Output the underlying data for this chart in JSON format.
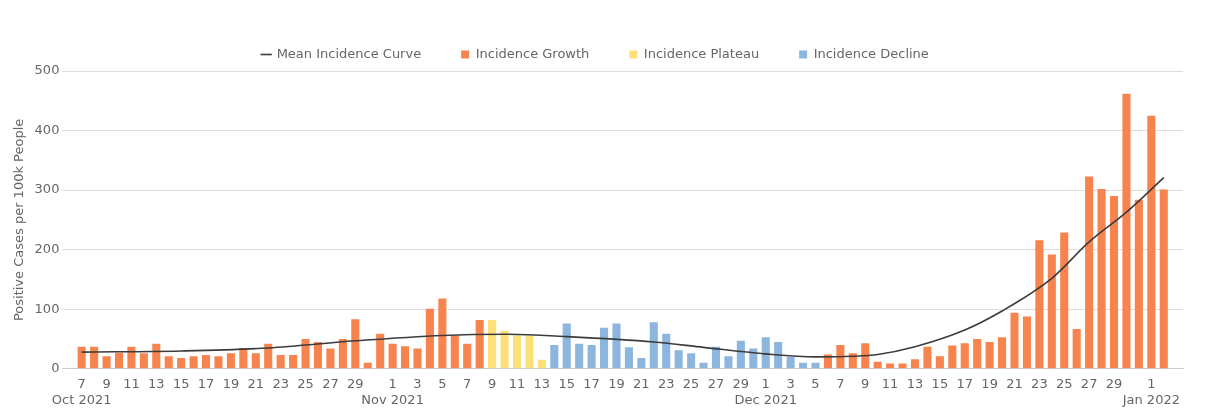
{
  "chart_data": {
    "type": "bar",
    "ylabel": "Positive Cases per 100k People",
    "legend": "top",
    "grid": "y",
    "x": [
      "2021-10-07",
      "2021-10-08",
      "2021-10-09",
      "2021-10-10",
      "2021-10-11",
      "2021-10-12",
      "2021-10-13",
      "2021-10-14",
      "2021-10-15",
      "2021-10-16",
      "2021-10-17",
      "2021-10-18",
      "2021-10-19",
      "2021-10-20",
      "2021-10-21",
      "2021-10-22",
      "2021-10-23",
      "2021-10-24",
      "2021-10-25",
      "2021-10-26",
      "2021-10-27",
      "2021-10-28",
      "2021-10-29",
      "2021-10-30",
      "2021-10-31",
      "2021-11-01",
      "2021-11-02",
      "2021-11-03",
      "2021-11-04",
      "2021-11-05",
      "2021-11-06",
      "2021-11-07",
      "2021-11-08",
      "2021-11-09",
      "2021-11-10",
      "2021-11-11",
      "2021-11-12",
      "2021-11-13",
      "2021-11-14",
      "2021-11-15",
      "2021-11-16",
      "2021-11-17",
      "2021-11-18",
      "2021-11-19",
      "2021-11-20",
      "2021-11-21",
      "2021-11-22",
      "2021-11-23",
      "2021-11-24",
      "2021-11-25",
      "2021-11-26",
      "2021-11-27",
      "2021-11-28",
      "2021-11-29",
      "2021-11-30",
      "2021-12-01",
      "2021-12-02",
      "2021-12-03",
      "2021-12-04",
      "2021-12-05",
      "2021-12-06",
      "2021-12-07",
      "2021-12-08",
      "2021-12-09",
      "2021-12-10",
      "2021-12-11",
      "2021-12-12",
      "2021-12-13",
      "2021-12-14",
      "2021-12-15",
      "2021-12-16",
      "2021-12-17",
      "2021-12-18",
      "2021-12-19",
      "2021-12-20",
      "2021-12-21",
      "2021-12-22",
      "2021-12-23",
      "2021-12-24",
      "2021-12-25",
      "2021-12-26",
      "2021-12-27",
      "2021-12-28",
      "2021-12-29",
      "2021-12-30",
      "2021-12-31",
      "2022-01-01",
      "2022-01-02"
    ],
    "xlim": [
      "2021-10-06T12:00",
      "2022-01-02T12:00"
    ],
    "xticks": [
      {
        "value": "2021-10-07",
        "label": "7\nOct 2021"
      },
      {
        "value": "2021-10-09",
        "label": "9"
      },
      {
        "value": "2021-10-11",
        "label": "11"
      },
      {
        "value": "2021-10-13",
        "label": "13"
      },
      {
        "value": "2021-10-15",
        "label": "15"
      },
      {
        "value": "2021-10-17",
        "label": "17"
      },
      {
        "value": "2021-10-19",
        "label": "19"
      },
      {
        "value": "2021-10-21",
        "label": "21"
      },
      {
        "value": "2021-10-23",
        "label": "23"
      },
      {
        "value": "2021-10-25",
        "label": "25"
      },
      {
        "value": "2021-10-27",
        "label": "27"
      },
      {
        "value": "2021-10-29",
        "label": "29"
      },
      {
        "value": "2021-11-01",
        "label": "1\nNov 2021"
      },
      {
        "value": "2021-11-03",
        "label": "3"
      },
      {
        "value": "2021-11-05",
        "label": "5"
      },
      {
        "value": "2021-11-07",
        "label": "7"
      },
      {
        "value": "2021-11-09",
        "label": "9"
      },
      {
        "value": "2021-11-11",
        "label": "11"
      },
      {
        "value": "2021-11-13",
        "label": "13"
      },
      {
        "value": "2021-11-15",
        "label": "15"
      },
      {
        "value": "2021-11-17",
        "label": "17"
      },
      {
        "value": "2021-11-19",
        "label": "19"
      },
      {
        "value": "2021-11-21",
        "label": "21"
      },
      {
        "value": "2021-11-23",
        "label": "23"
      },
      {
        "value": "2021-11-25",
        "label": "25"
      },
      {
        "value": "2021-11-27",
        "label": "27"
      },
      {
        "value": "2021-11-29",
        "label": "29"
      },
      {
        "value": "2021-12-01",
        "label": "1\nDec 2021"
      },
      {
        "value": "2021-12-03",
        "label": "3"
      },
      {
        "value": "2021-12-05",
        "label": "5"
      },
      {
        "value": "2021-12-07",
        "label": "7"
      },
      {
        "value": "2021-12-09",
        "label": "9"
      },
      {
        "value": "2021-12-11",
        "label": "11"
      },
      {
        "value": "2021-12-13",
        "label": "13"
      },
      {
        "value": "2021-12-15",
        "label": "15"
      },
      {
        "value": "2021-12-17",
        "label": "17"
      },
      {
        "value": "2021-12-19",
        "label": "19"
      },
      {
        "value": "2021-12-21",
        "label": "21"
      },
      {
        "value": "2021-12-23",
        "label": "23"
      },
      {
        "value": "2021-12-25",
        "label": "25"
      },
      {
        "value": "2021-12-27",
        "label": "27"
      },
      {
        "value": "2021-12-29",
        "label": "29"
      },
      {
        "value": "2022-01-01",
        "label": "1\nJan 2022"
      }
    ],
    "ylim": [
      0,
      500
    ],
    "yticks": [
      0,
      100,
      200,
      300,
      400,
      500
    ],
    "series": [
      {
        "name": "Mean Incidence Curve",
        "type": "line",
        "color": "#3c3c3c",
        "marker": "none",
        "line_style": "solid",
        "x": [
          "2021-10-07",
          "2021-10-15",
          "2021-10-22",
          "2021-10-29",
          "2021-11-05",
          "2021-11-10",
          "2021-11-15",
          "2021-11-22",
          "2021-11-26",
          "2021-12-01",
          "2021-12-05",
          "2021-12-08",
          "2021-12-10",
          "2021-12-13",
          "2021-12-17",
          "2021-12-20",
          "2021-12-24",
          "2021-12-27",
          "2021-12-30",
          "2022-01-02"
        ],
        "values": [
          28,
          30,
          35,
          47,
          56,
          58,
          54,
          45,
          36,
          25,
          20,
          21,
          24,
          37,
          65,
          97,
          152,
          213,
          263,
          321
        ]
      },
      {
        "name": "Incidence Growth",
        "color": "#f7844f",
        "values": [
          37,
          37,
          21,
          27,
          37,
          26,
          42,
          21,
          18,
          21,
          23,
          21,
          26,
          35,
          26,
          42,
          23,
          23,
          50,
          45,
          34,
          50,
          83,
          10,
          59,
          42,
          38,
          34,
          101,
          118,
          56,
          42,
          82,
          null,
          null,
          null,
          null,
          null,
          null,
          null,
          null,
          null,
          null,
          null,
          null,
          null,
          null,
          null,
          null,
          null,
          null,
          null,
          null,
          null,
          null,
          null,
          null,
          null,
          null,
          null,
          24,
          40,
          26,
          43,
          12,
          9,
          9,
          16,
          37,
          21,
          39,
          43,
          50,
          45,
          53,
          94,
          88,
          216,
          192,
          229,
          67,
          323,
          302,
          290,
          462,
          284,
          425,
          301
        ]
      },
      {
        "name": "Incidence Plateau",
        "color": "#fde07a",
        "values": [
          null,
          null,
          null,
          null,
          null,
          null,
          null,
          null,
          null,
          null,
          null,
          null,
          null,
          null,
          null,
          null,
          null,
          null,
          null,
          null,
          null,
          null,
          null,
          null,
          null,
          null,
          null,
          null,
          null,
          null,
          null,
          null,
          null,
          82,
          64,
          56,
          56,
          15,
          null,
          null,
          null,
          null,
          null,
          null,
          null,
          null,
          null,
          null,
          null,
          null,
          null,
          null,
          null,
          null,
          null,
          null,
          null,
          null,
          null,
          null,
          null,
          null,
          null,
          null,
          null,
          null,
          null,
          null,
          null,
          null,
          null,
          null,
          null,
          null,
          null,
          null,
          null,
          null,
          null,
          null,
          null,
          null,
          null,
          null,
          null,
          null,
          null,
          null
        ]
      },
      {
        "name": "Incidence Decline",
        "color": "#8db6de",
        "values": [
          null,
          null,
          null,
          null,
          null,
          null,
          null,
          null,
          null,
          null,
          null,
          null,
          null,
          null,
          null,
          null,
          null,
          null,
          null,
          null,
          null,
          null,
          null,
          null,
          null,
          null,
          null,
          null,
          null,
          null,
          null,
          null,
          null,
          null,
          null,
          null,
          null,
          null,
          40,
          76,
          42,
          40,
          69,
          76,
          36,
          18,
          78,
          59,
          31,
          26,
          10,
          37,
          21,
          47,
          34,
          53,
          45,
          20,
          10,
          10,
          null,
          null,
          null,
          null,
          null,
          null,
          null,
          null,
          null,
          null,
          null,
          null,
          null,
          null,
          null,
          null,
          null,
          null,
          null,
          null,
          null,
          null,
          null,
          null,
          null,
          null,
          null,
          null
        ]
      }
    ]
  }
}
